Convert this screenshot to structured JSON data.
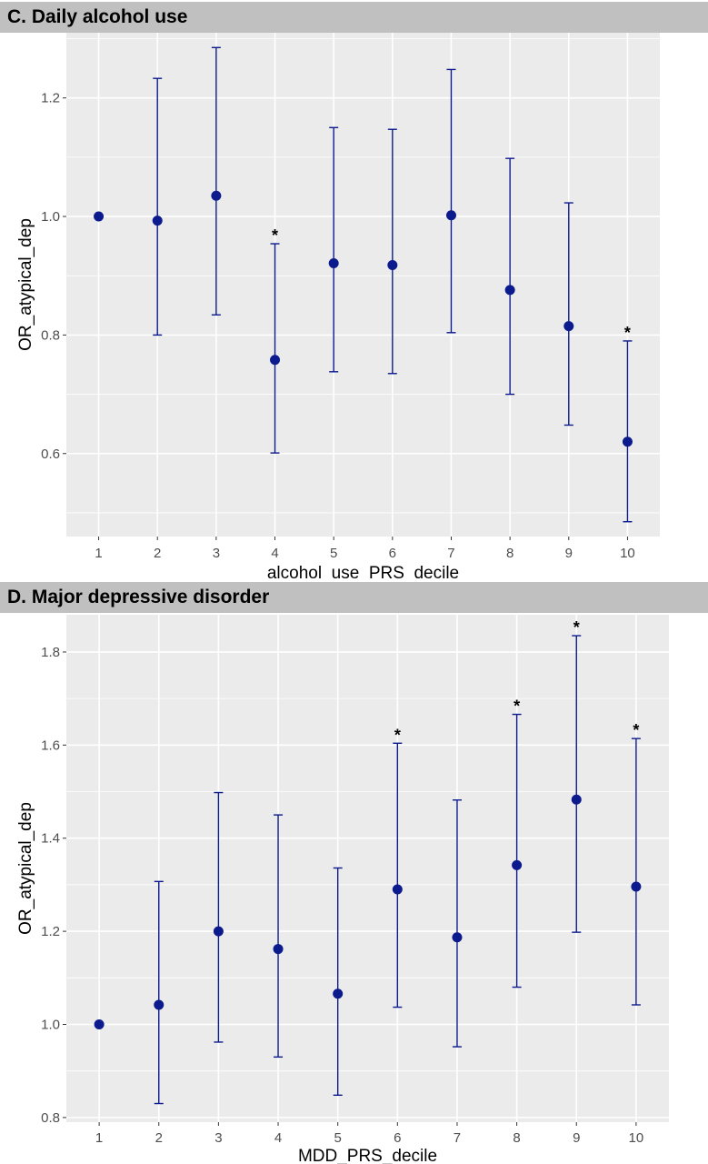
{
  "chart_data": [
    {
      "type": "scatter",
      "title": "C. Daily alcohol use",
      "xlabel": "alcohol_use_PRS_decile",
      "ylabel": "OR_atypical_dep",
      "x": [
        1,
        2,
        3,
        4,
        5,
        6,
        7,
        8,
        9,
        10
      ],
      "xlim": [
        0.45,
        10.55
      ],
      "ylim": [
        0.46,
        1.31
      ],
      "yticks": [
        0.6,
        0.8,
        1.0,
        1.2
      ],
      "ytick_labels": [
        "0.6",
        "0.8",
        "1.0",
        "1.2"
      ],
      "xtick_labels": [
        "1",
        "2",
        "3",
        "4",
        "5",
        "6",
        "7",
        "8",
        "9",
        "10"
      ],
      "grid": true,
      "series": [
        {
          "values": [
            1.0,
            0.993,
            1.035,
            0.758,
            0.921,
            0.918,
            1.002,
            0.876,
            0.815,
            0.62
          ],
          "ci_lower": [
            null,
            0.8,
            0.834,
            0.601,
            0.738,
            0.735,
            0.804,
            0.7,
            0.648,
            0.485
          ],
          "ci_upper": [
            null,
            1.233,
            1.285,
            0.954,
            1.15,
            1.147,
            1.248,
            1.098,
            1.023,
            0.79
          ],
          "significant": [
            false,
            false,
            false,
            true,
            false,
            false,
            false,
            false,
            false,
            true
          ],
          "significance_marker": "*",
          "color": "#0b1a8c"
        }
      ]
    },
    {
      "type": "scatter",
      "title": "D. Major depressive disorder",
      "xlabel": "MDD_PRS_decile",
      "ylabel": "OR_atypical_dep",
      "x": [
        1,
        2,
        3,
        4,
        5,
        6,
        7,
        8,
        9,
        10
      ],
      "xlim": [
        0.45,
        10.55
      ],
      "ylim": [
        0.79,
        1.88
      ],
      "yticks": [
        0.8,
        1.0,
        1.2,
        1.4,
        1.6,
        1.8
      ],
      "ytick_labels": [
        "0.8",
        "1.0",
        "1.2",
        "1.4",
        "1.6",
        "1.8"
      ],
      "xtick_labels": [
        "1",
        "2",
        "3",
        "4",
        "5",
        "6",
        "7",
        "8",
        "9",
        "10"
      ],
      "grid": true,
      "series": [
        {
          "values": [
            1.0,
            1.042,
            1.2,
            1.162,
            1.066,
            1.29,
            1.187,
            1.342,
            1.483,
            1.296
          ],
          "ci_lower": [
            null,
            0.83,
            0.962,
            0.93,
            0.848,
            1.037,
            0.952,
            1.08,
            1.198,
            1.042
          ],
          "ci_upper": [
            null,
            1.307,
            1.498,
            1.45,
            1.336,
            1.604,
            1.482,
            1.666,
            1.835,
            1.614
          ],
          "significant": [
            false,
            false,
            false,
            false,
            false,
            true,
            false,
            true,
            true,
            true
          ],
          "significance_marker": "*",
          "color": "#0b1a8c"
        }
      ]
    }
  ],
  "colors": {
    "panel_background": "#ebebeb",
    "grid": "#ffffff",
    "points": "#0b1a8c",
    "title_banner": "#c0c0c0"
  }
}
